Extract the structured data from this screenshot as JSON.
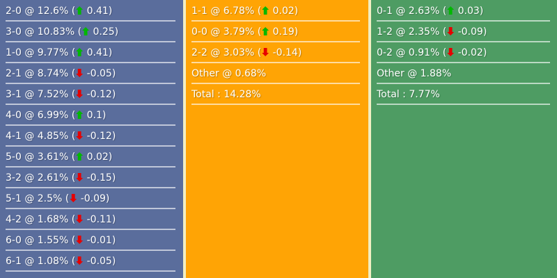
{
  "colors": {
    "home_bg": "#5a6d9c",
    "draw_bg": "#ffa405",
    "away_bg": "#4e9c63",
    "column_separator": "#f2eec2",
    "row_divider": "rgba(255,255,255,0.62)",
    "text": "#ffffff",
    "up_arrow": "#00b800",
    "down_arrow": "#e60000"
  },
  "columns": [
    {
      "name": "home-win-scores",
      "bg_key": "home_bg",
      "rows": [
        {
          "label": "2-0",
          "sep": "@",
          "value": "12.6%",
          "dir": "up",
          "delta": "0.41"
        },
        {
          "label": "3-0",
          "sep": "@",
          "value": "10.83%",
          "dir": "up",
          "delta": "0.25"
        },
        {
          "label": "1-0",
          "sep": "@",
          "value": "9.77%",
          "dir": "up",
          "delta": "0.41"
        },
        {
          "label": "2-1",
          "sep": "@",
          "value": "8.74%",
          "dir": "down",
          "delta": "-0.05"
        },
        {
          "label": "3-1",
          "sep": "@",
          "value": "7.52%",
          "dir": "down",
          "delta": "-0.12"
        },
        {
          "label": "4-0",
          "sep": "@",
          "value": "6.99%",
          "dir": "up",
          "delta": "0.1"
        },
        {
          "label": "4-1",
          "sep": "@",
          "value": "4.85%",
          "dir": "down",
          "delta": "-0.12"
        },
        {
          "label": "5-0",
          "sep": "@",
          "value": "3.61%",
          "dir": "up",
          "delta": "0.02"
        },
        {
          "label": "3-2",
          "sep": "@",
          "value": "2.61%",
          "dir": "down",
          "delta": "-0.15"
        },
        {
          "label": "5-1",
          "sep": "@",
          "value": "2.5%",
          "dir": "down",
          "delta": "-0.09"
        },
        {
          "label": "4-2",
          "sep": "@",
          "value": "1.68%",
          "dir": "down",
          "delta": "-0.11"
        },
        {
          "label": "6-0",
          "sep": "@",
          "value": "1.55%",
          "dir": "down",
          "delta": "-0.01"
        },
        {
          "label": "6-1",
          "sep": "@",
          "value": "1.08%",
          "dir": "down",
          "delta": "-0.05"
        }
      ]
    },
    {
      "name": "draw-scores",
      "bg_key": "draw_bg",
      "rows": [
        {
          "label": "1-1",
          "sep": "@",
          "value": "6.78%",
          "dir": "up",
          "delta": "0.02"
        },
        {
          "label": "0-0",
          "sep": "@",
          "value": "3.79%",
          "dir": "up",
          "delta": "0.19"
        },
        {
          "label": "2-2",
          "sep": "@",
          "value": "3.03%",
          "dir": "down",
          "delta": "-0.14"
        },
        {
          "label": "Other",
          "sep": "@",
          "value": "0.68%"
        },
        {
          "label": "Total",
          "sep": ":",
          "value": "14.28%"
        }
      ]
    },
    {
      "name": "away-win-scores",
      "bg_key": "away_bg",
      "rows": [
        {
          "label": "0-1",
          "sep": "@",
          "value": "2.63%",
          "dir": "up",
          "delta": "0.03"
        },
        {
          "label": "1-2",
          "sep": "@",
          "value": "2.35%",
          "dir": "down",
          "delta": "-0.09"
        },
        {
          "label": "0-2",
          "sep": "@",
          "value": "0.91%",
          "dir": "down",
          "delta": "-0.02"
        },
        {
          "label": "Other",
          "sep": "@",
          "value": "1.88%"
        },
        {
          "label": "Total",
          "sep": ":",
          "value": "7.77%"
        }
      ]
    }
  ]
}
